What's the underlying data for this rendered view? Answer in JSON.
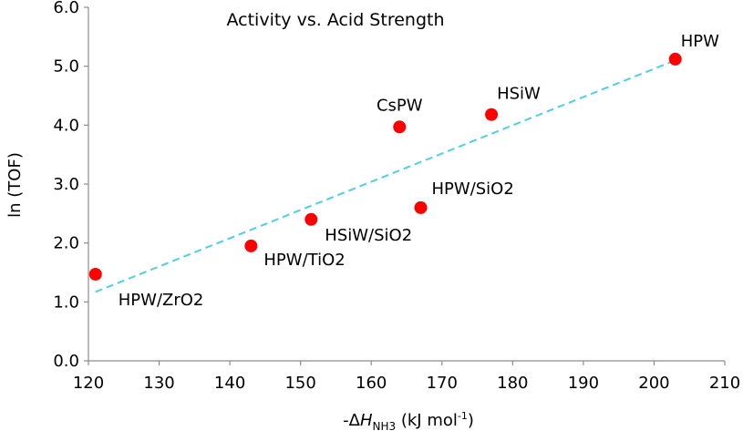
{
  "chart_data": {
    "type": "scatter",
    "title": "Activity vs. Acid Strength",
    "xlabel": {
      "prefix": "-Δ",
      "symbol": "H",
      "subscript": "NH3",
      "suffix": " (kJ mol",
      "superscript": "-1",
      "close": ")"
    },
    "ylabel": "ln (TOF)",
    "xlim": [
      120,
      210
    ],
    "ylim": [
      0,
      6
    ],
    "xticks": [
      "120",
      "130",
      "140",
      "150",
      "160",
      "170",
      "180",
      "190",
      "200",
      "210"
    ],
    "yticks": [
      "0.0",
      "1.0",
      "2.0",
      "3.0",
      "4.0",
      "5.0",
      "6.0"
    ],
    "points": [
      {
        "label": "HPW/ZrO2",
        "x": 121,
        "y": 1.47
      },
      {
        "label": "HPW/TiO2",
        "x": 143,
        "y": 1.95
      },
      {
        "label": "HSiW/SiO2",
        "x": 151.5,
        "y": 2.4
      },
      {
        "label": "CsPW",
        "x": 164,
        "y": 3.97
      },
      {
        "label": "HPW/SiO2",
        "x": 167,
        "y": 2.6
      },
      {
        "label": "HSiW",
        "x": 177,
        "y": 4.18
      },
      {
        "label": "HPW",
        "x": 203,
        "y": 5.12
      }
    ],
    "trendline": {
      "x": [
        121,
        203
      ],
      "y": [
        1.17,
        5.1
      ]
    },
    "marker_color": "#ff0000",
    "trendline_color": "#4dd0e1",
    "grid": false
  }
}
